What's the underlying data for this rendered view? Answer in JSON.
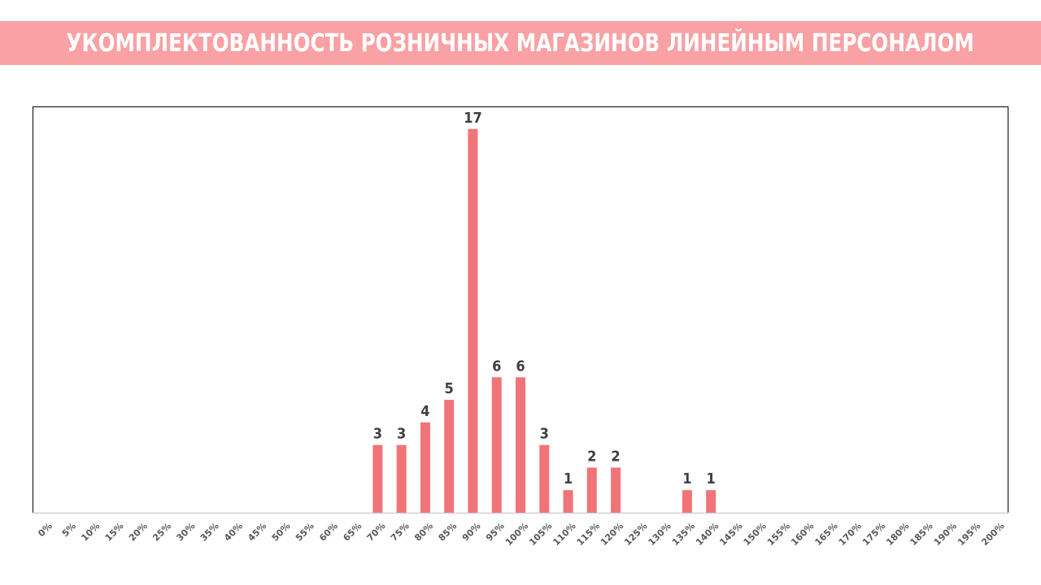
{
  "colors": {
    "title_bg": "#F9A1A4",
    "bar": "#F17479",
    "label": "#404040",
    "tick": "#595959"
  },
  "chart_data": {
    "type": "bar",
    "title": "УКОМПЛЕКТОВАННОСТЬ РОЗНИЧНЫХ МАГАЗИНОВ ЛИНЕЙНЫМ ПЕРСОНАЛОМ",
    "xlabel": "",
    "ylabel": "",
    "categories": [
      "0%",
      "5%",
      "10%",
      "15%",
      "20%",
      "25%",
      "30%",
      "35%",
      "40%",
      "45%",
      "50%",
      "55%",
      "60%",
      "65%",
      "70%",
      "75%",
      "80%",
      "85%",
      "90%",
      "95%",
      "100%",
      "105%",
      "110%",
      "115%",
      "120%",
      "125%",
      "130%",
      "135%",
      "140%",
      "145%",
      "150%",
      "155%",
      "160%",
      "165%",
      "170%",
      "175%",
      "180%",
      "185%",
      "190%",
      "195%",
      "200%"
    ],
    "values": [
      0,
      0,
      0,
      0,
      0,
      0,
      0,
      0,
      0,
      0,
      0,
      0,
      0,
      0,
      3,
      3,
      4,
      5,
      17,
      6,
      6,
      3,
      1,
      2,
      2,
      0,
      0,
      1,
      1,
      0,
      0,
      0,
      0,
      0,
      0,
      0,
      0,
      0,
      0,
      0,
      0
    ],
    "ylim": [
      0,
      18
    ],
    "grid": false,
    "data_labels": true
  }
}
